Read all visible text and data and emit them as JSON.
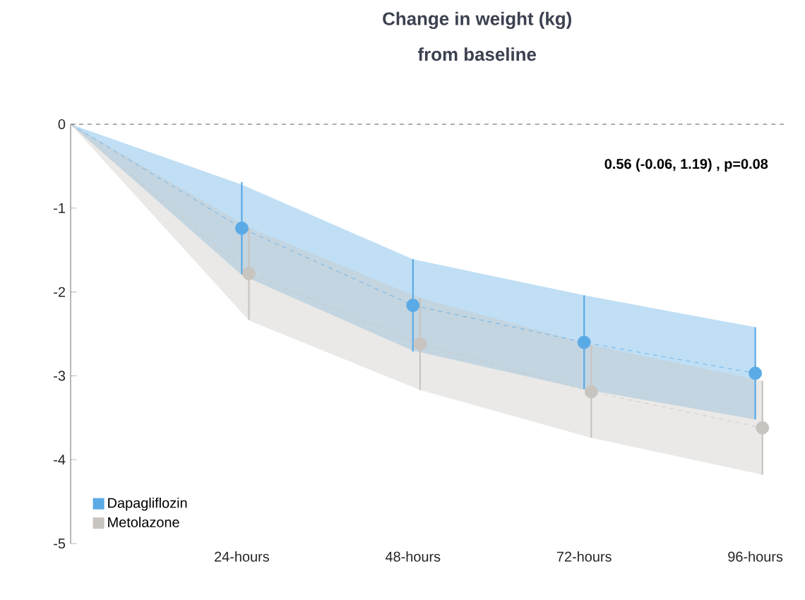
{
  "chart_data": {
    "type": "line",
    "title": "Change in weight (kg)",
    "subtitle": "from baseline",
    "xlim": [
      0,
      100
    ],
    "xticks": [
      {
        "value": 24,
        "label": "24-hours"
      },
      {
        "value": 48,
        "label": "48-hours"
      },
      {
        "value": 72,
        "label": "72-hours"
      },
      {
        "value": 96,
        "label": "96-hours"
      }
    ],
    "ylim": [
      -5,
      0
    ],
    "yticks": [
      -5,
      -4,
      -3,
      -2,
      -1,
      0
    ],
    "series": [
      {
        "name": "Dapagliflozin",
        "color": "#5aaae6",
        "x": [
          0,
          24,
          48,
          72,
          96
        ],
        "values": [
          0,
          -1.24,
          -2.16,
          -2.6,
          -2.97
        ],
        "errors": [
          null,
          0.55,
          0.55,
          0.56,
          0.55
        ],
        "lower": [
          0,
          -1.8,
          -2.7,
          -3.16,
          -3.52
        ],
        "upper": [
          0,
          -0.72,
          -1.61,
          -2.04,
          -2.42
        ]
      },
      {
        "name": "Metolazone",
        "color": "#c8c4c0",
        "x": [
          0,
          25,
          49,
          73,
          97
        ],
        "values": [
          0,
          -1.78,
          -2.62,
          -3.19,
          -3.62
        ],
        "errors": [
          null,
          0.55,
          0.55,
          0.55,
          0.56
        ],
        "lower": [
          0,
          -2.34,
          -3.17,
          -3.74,
          -4.18
        ],
        "upper": [
          0,
          -1.23,
          -2.07,
          -2.63,
          -3.06
        ]
      }
    ],
    "ref_lines": [
      {
        "axis": "y",
        "value": 0,
        "color": "#333333",
        "line_style": "dashed"
      }
    ],
    "annotations": [
      "0.56 (-0.06, 1.19) , p=0.08"
    ],
    "marker": "circle",
    "line_style": "dashed",
    "legend": "bottom left",
    "grid": false
  }
}
